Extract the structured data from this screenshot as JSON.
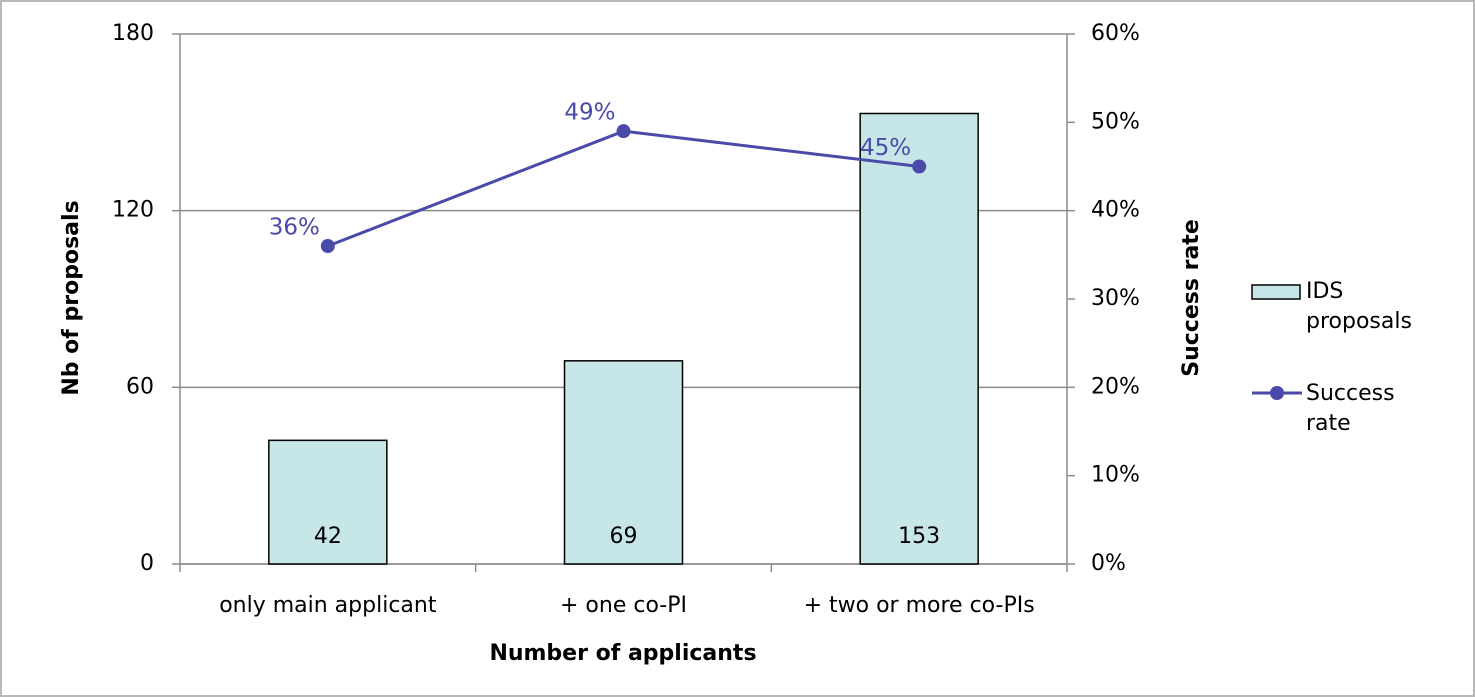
{
  "chart_data": {
    "type": "bar",
    "x_label": "Number of applicants",
    "y_label": "Nb of proposals",
    "y2_label": "Success rate",
    "categories": [
      "only main applicant",
      "+ one co-PI",
      "+ two or more co-PIs"
    ],
    "series": [
      {
        "name": "IDS proposals",
        "type": "bar",
        "color": "#c6e6e8",
        "values": [
          42,
          69,
          153
        ]
      },
      {
        "name": "Success rate",
        "type": "line",
        "axis": "y2",
        "color": "#4a4aa8",
        "values": [
          36,
          49,
          45
        ],
        "value_labels": [
          "36%",
          "49%",
          "45%"
        ]
      }
    ],
    "ylim": [
      0,
      180
    ],
    "yticks": [
      0,
      60,
      120,
      180
    ],
    "y2lim": [
      0,
      60
    ],
    "y2ticks": [
      {
        "value": 0,
        "label": "0%"
      },
      {
        "value": 10,
        "label": "10%"
      },
      {
        "value": 20,
        "label": "20%"
      },
      {
        "value": 30,
        "label": "30%"
      },
      {
        "value": 40,
        "label": "40%"
      },
      {
        "value": 50,
        "label": "50%"
      },
      {
        "value": 60,
        "label": "60%"
      }
    ],
    "grid": true,
    "legend": "right"
  }
}
